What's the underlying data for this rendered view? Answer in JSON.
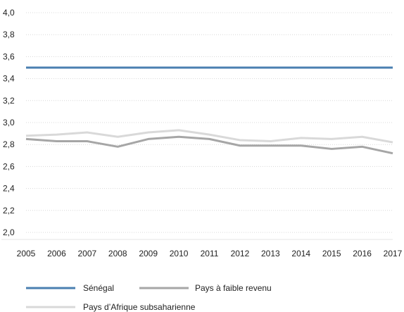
{
  "chart_data": {
    "type": "line",
    "title": "",
    "xlabel": "",
    "ylabel": "",
    "x": [
      "2005",
      "2006",
      "2007",
      "2008",
      "2009",
      "2010",
      "2011",
      "2012",
      "2013",
      "2014",
      "2015",
      "2016",
      "2017"
    ],
    "ylim": [
      2.0,
      4.0
    ],
    "yticks": [
      "2,0",
      "2,2",
      "2,4",
      "2,6",
      "2,8",
      "3,0",
      "3,2",
      "3,4",
      "3,6",
      "3,8",
      "4,0"
    ],
    "grid": true,
    "legend_position": "bottom",
    "series": [
      {
        "name": "Sénégal",
        "color": "#4a7fb0",
        "values": [
          3.5,
          3.5,
          3.5,
          3.5,
          3.5,
          3.5,
          3.5,
          3.5,
          3.5,
          3.5,
          3.5,
          3.5,
          3.5
        ]
      },
      {
        "name": "Pays à faible revenu",
        "color": "#a6a6a6",
        "values": [
          2.85,
          2.83,
          2.83,
          2.78,
          2.85,
          2.87,
          2.85,
          2.79,
          2.79,
          2.79,
          2.76,
          2.78,
          2.72
        ]
      },
      {
        "name": "Pays d’Afrique subsaharienne",
        "color": "#d9d9d9",
        "values": [
          2.88,
          2.89,
          2.91,
          2.87,
          2.91,
          2.93,
          2.89,
          2.84,
          2.83,
          2.86,
          2.85,
          2.87,
          2.82
        ]
      }
    ]
  }
}
